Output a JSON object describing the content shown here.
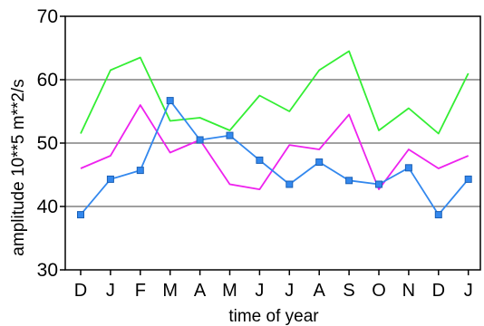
{
  "chart_data": {
    "type": "line",
    "title": "",
    "xlabel": "time of year",
    "ylabel": "amplitude 10**5 m**2/s",
    "categories": [
      "D",
      "J",
      "F",
      "M",
      "A",
      "M",
      "J",
      "J",
      "A",
      "S",
      "O",
      "N",
      "D",
      "J"
    ],
    "yticks": [
      "30",
      "40",
      "50",
      "60",
      "70"
    ],
    "ylim": [
      30,
      70
    ],
    "grid": "horizontal",
    "legend": "none",
    "series": [
      {
        "color": "#33ee33",
        "marker": "none",
        "values": [
          51.5,
          61.5,
          63.5,
          53.5,
          54,
          52,
          57.5,
          55,
          61.5,
          64.5,
          52,
          55.5,
          51.5,
          61
        ]
      },
      {
        "color": "#ee22ee",
        "marker": "none",
        "values": [
          46,
          48,
          56,
          48.5,
          50.5,
          43.5,
          42.7,
          49.7,
          49,
          54.5,
          42.7,
          49,
          46,
          48
        ]
      },
      {
        "color": "#3388ee",
        "marker": "square",
        "values": [
          38.7,
          44.3,
          45.7,
          56.7,
          50.5,
          51.2,
          47.3,
          43.5,
          47,
          44.1,
          43.5,
          46.1,
          38.7,
          44.3
        ]
      }
    ]
  }
}
